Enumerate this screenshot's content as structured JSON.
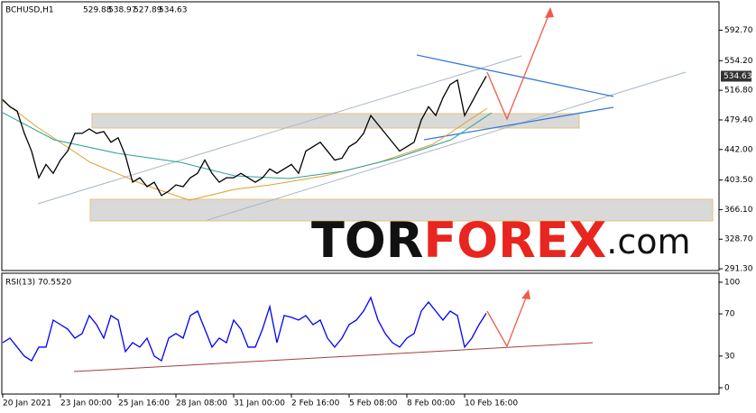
{
  "chart_data": [
    {
      "type": "line",
      "title": "BCHUSD,H1",
      "ohlc": [
        529.88,
        538.97,
        527.89,
        534.63
      ],
      "categories": [
        "20 Jan 2021",
        null,
        null,
        null,
        null,
        null,
        null,
        null,
        "23 Jan 00:00",
        null,
        null,
        null,
        null,
        null,
        null,
        null,
        "25 Jan 16:00",
        null,
        null,
        null,
        null,
        null,
        null,
        null,
        "28 Jan 08:00",
        null,
        null,
        null,
        null,
        null,
        null,
        null,
        "31 Jan 00:00",
        null,
        null,
        null,
        null,
        null,
        null,
        null,
        "2 Feb 16:00",
        null,
        null,
        null,
        null,
        null,
        null,
        null,
        "5 Feb 08:00",
        null,
        null,
        null,
        null,
        null,
        null,
        null,
        "8 Feb 00:00",
        null,
        null,
        null,
        null,
        null,
        null,
        null,
        "10 Feb 16:00",
        null,
        null,
        null
      ],
      "values": [
        505.1,
        496.1,
        490.5,
        462.4,
        440.0,
        406.3,
        423.1,
        411.9,
        428.7,
        440.0,
        462.4,
        462.4,
        468.0,
        462.4,
        464.7,
        451.2,
        456.8,
        434.4,
        400.7,
        406.3,
        395.1,
        400.7,
        383.8,
        389.4,
        397.3,
        395.1,
        406.3,
        411.9,
        428.7,
        411.9,
        400.7,
        406.3,
        406.3,
        411.9,
        406.3,
        400.7,
        406.3,
        417.5,
        411.9,
        417.5,
        423.1,
        411.9,
        440.0,
        445.6,
        451.2,
        440.0,
        428.7,
        431.0,
        445.6,
        451.2,
        462.4,
        484.9,
        473.7,
        462.4,
        451.2,
        440.0,
        445.6,
        451.2,
        479.3,
        496.1,
        484.9,
        507.4,
        524.2,
        529.8,
        484.9,
        501.7,
        518.6,
        534.63
      ],
      "color": "#000000",
      "ylim": [
        289.1,
        627.5
      ],
      "yticks": [
        {
          "value": 592.7,
          "label": "592.70"
        },
        {
          "value": 554.2,
          "label": "554.20"
        },
        {
          "value": 516.8,
          "label": "516.80"
        },
        {
          "value": 479.4,
          "label": "479.40"
        },
        {
          "value": 442.0,
          "label": "442.00"
        },
        {
          "value": 403.5,
          "label": "403.50"
        },
        {
          "value": 366.1,
          "label": "366.10"
        },
        {
          "value": 328.7,
          "label": "328.70"
        },
        {
          "value": 291.3,
          "label": "291.30"
        }
      ],
      "last_price": {
        "value": 534.63,
        "label": "534.63"
      }
    },
    {
      "type": "line",
      "title": "RSI(13) 70.5520",
      "values": [
        42.7,
        47.0,
        38.5,
        29.9,
        25.6,
        38.5,
        38.5,
        64.1,
        59.8,
        55.6,
        47.0,
        51.3,
        68.4,
        59.8,
        47.0,
        68.4,
        64.1,
        34.2,
        42.7,
        38.5,
        47.0,
        29.9,
        25.6,
        47.0,
        51.3,
        47.0,
        68.4,
        72.6,
        55.6,
        38.5,
        47.0,
        42.7,
        64.1,
        55.6,
        38.5,
        38.5,
        55.6,
        76.9,
        42.7,
        68.4,
        66.7,
        64.1,
        68.4,
        59.8,
        64.1,
        47.0,
        38.5,
        47.0,
        59.8,
        64.1,
        72.6,
        85.5,
        64.1,
        51.3,
        42.7,
        38.5,
        47.0,
        51.3,
        72.6,
        81.2,
        72.6,
        64.1,
        72.6,
        68.4,
        38.5,
        47.0,
        59.8,
        70.552
      ],
      "color": "#0000ff",
      "ylim": [
        -6,
        108.5
      ],
      "yticks": [
        0,
        30,
        70,
        100
      ]
    }
  ],
  "brand": [
    "TOR",
    "FOREX",
    ".com"
  ]
}
